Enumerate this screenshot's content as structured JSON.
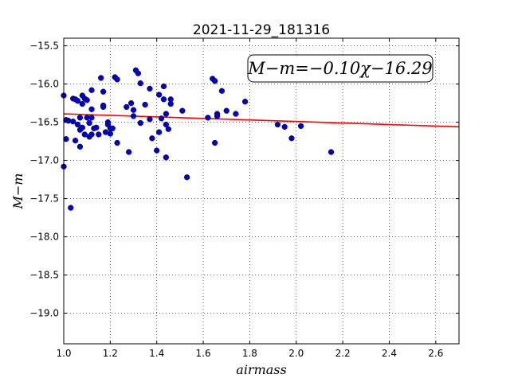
{
  "chart_data": {
    "type": "scatter",
    "title": "2021-11-29_181316",
    "xlabel": "airmass",
    "ylabel": "M−m",
    "annotation": "M−m=−0.10χ−16.29",
    "xlim": [
      1.0,
      2.7
    ],
    "ylim": [
      -15.4,
      -19.4
    ],
    "y_inverted": true,
    "grid": true,
    "xticks": [
      "1.0",
      "1.2",
      "1.4",
      "1.6",
      "1.8",
      "2.0",
      "2.2",
      "2.4",
      "2.6"
    ],
    "xtick_values": [
      1.0,
      1.2,
      1.4,
      1.6,
      1.8,
      2.0,
      2.2,
      2.4,
      2.6
    ],
    "yticks": [
      "−15.5",
      "−16.0",
      "−16.5",
      "−17.0",
      "−17.5",
      "−18.0",
      "−18.5",
      "−19.0"
    ],
    "ytick_values": [
      -15.5,
      -16.0,
      -16.5,
      -17.0,
      -17.5,
      -18.0,
      -18.5,
      -19.0
    ],
    "fit": {
      "slope": -0.1,
      "intercept": -16.29,
      "color": "#ff0000"
    },
    "point_color": "#0000cc",
    "points": [
      [
        1.0,
        -16.15
      ],
      [
        1.0,
        -17.08
      ],
      [
        1.01,
        -16.47
      ],
      [
        1.01,
        -16.72
      ],
      [
        1.02,
        -16.48
      ],
      [
        1.03,
        -17.62
      ],
      [
        1.04,
        -16.49
      ],
      [
        1.04,
        -16.19
      ],
      [
        1.05,
        -16.2
      ],
      [
        1.05,
        -16.74
      ],
      [
        1.06,
        -16.22
      ],
      [
        1.06,
        -16.53
      ],
      [
        1.07,
        -16.44
      ],
      [
        1.07,
        -16.6
      ],
      [
        1.07,
        -16.82
      ],
      [
        1.08,
        -16.15
      ],
      [
        1.08,
        -16.26
      ],
      [
        1.08,
        -16.57
      ],
      [
        1.09,
        -16.19
      ],
      [
        1.09,
        -16.66
      ],
      [
        1.1,
        -16.21
      ],
      [
        1.1,
        -16.44
      ],
      [
        1.11,
        -16.51
      ],
      [
        1.11,
        -16.69
      ],
      [
        1.12,
        -16.08
      ],
      [
        1.12,
        -16.33
      ],
      [
        1.12,
        -16.44
      ],
      [
        1.12,
        -16.66
      ],
      [
        1.13,
        -16.58
      ],
      [
        1.14,
        -16.57
      ],
      [
        1.15,
        -16.66
      ],
      [
        1.16,
        -15.92
      ],
      [
        1.17,
        -16.1
      ],
      [
        1.17,
        -16.28
      ],
      [
        1.17,
        -16.3
      ],
      [
        1.18,
        -16.63
      ],
      [
        1.19,
        -16.53
      ],
      [
        1.19,
        -16.5
      ],
      [
        1.2,
        -16.58
      ],
      [
        1.2,
        -16.65
      ],
      [
        1.21,
        -16.58
      ],
      [
        1.22,
        -15.91
      ],
      [
        1.23,
        -15.94
      ],
      [
        1.23,
        -16.77
      ],
      [
        1.27,
        -16.3
      ],
      [
        1.28,
        -16.89
      ],
      [
        1.29,
        -16.25
      ],
      [
        1.3,
        -16.34
      ],
      [
        1.3,
        -16.42
      ],
      [
        1.31,
        -15.82
      ],
      [
        1.32,
        -15.86
      ],
      [
        1.33,
        -16.51
      ],
      [
        1.33,
        -15.99
      ],
      [
        1.35,
        -16.27
      ],
      [
        1.37,
        -16.06
      ],
      [
        1.37,
        -16.46
      ],
      [
        1.38,
        -16.71
      ],
      [
        1.4,
        -16.87
      ],
      [
        1.41,
        -16.14
      ],
      [
        1.41,
        -16.63
      ],
      [
        1.42,
        -16.45
      ],
      [
        1.43,
        -16.03
      ],
      [
        1.43,
        -16.2
      ],
      [
        1.44,
        -16.96
      ],
      [
        1.44,
        -16.39
      ],
      [
        1.44,
        -16.53
      ],
      [
        1.45,
        -16.59
      ],
      [
        1.46,
        -16.2
      ],
      [
        1.46,
        -16.26
      ],
      [
        1.51,
        -16.35
      ],
      [
        1.53,
        -17.22
      ],
      [
        1.62,
        -16.44
      ],
      [
        1.64,
        -15.93
      ],
      [
        1.65,
        -15.96
      ],
      [
        1.65,
        -16.77
      ],
      [
        1.66,
        -16.39
      ],
      [
        1.66,
        -16.42
      ],
      [
        1.68,
        -16.09
      ],
      [
        1.7,
        -16.35
      ],
      [
        1.74,
        -16.39
      ],
      [
        1.78,
        -16.23
      ],
      [
        1.92,
        -16.53
      ],
      [
        1.95,
        -16.56
      ],
      [
        1.98,
        -16.71
      ],
      [
        2.02,
        -16.55
      ],
      [
        2.15,
        -16.89
      ]
    ]
  }
}
